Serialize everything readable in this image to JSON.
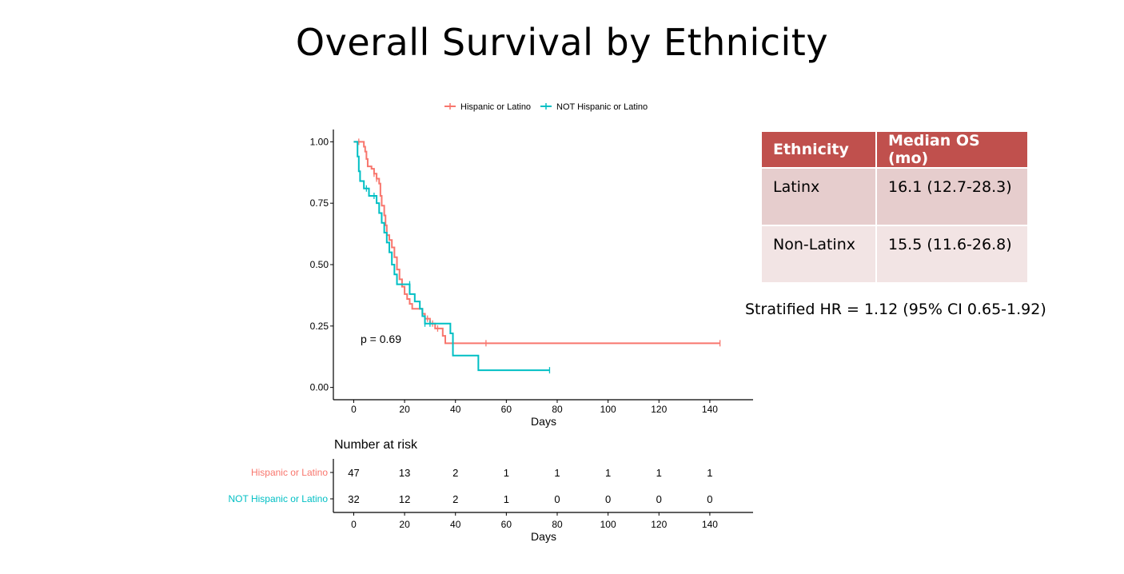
{
  "slide": {
    "title": "Overall Survival by Ethnicity"
  },
  "chart_data": {
    "type": "line",
    "subtype": "kaplan-meier",
    "legend": {
      "position": "top",
      "entries": [
        "Hispanic or Latino",
        "NOT Hispanic or Latino"
      ]
    },
    "xlabel": "Days",
    "ylabel": "",
    "xlim": [
      -8,
      157
    ],
    "ylim": [
      -0.05,
      1.05
    ],
    "xticks": [
      "0",
      "20",
      "40",
      "60",
      "80",
      "100",
      "120",
      "140"
    ],
    "yticks": [
      "0.00",
      "0.25",
      "0.50",
      "0.75",
      "1.00"
    ],
    "annotation": "p = 0.69",
    "series": [
      {
        "name": "Hispanic or Latino",
        "color": "#f8766d",
        "steps": [
          [
            0,
            1.0
          ],
          [
            4,
            0.98
          ],
          [
            4.5,
            0.96
          ],
          [
            5,
            0.93
          ],
          [
            5.5,
            0.9
          ],
          [
            7,
            0.89
          ],
          [
            8,
            0.87
          ],
          [
            9,
            0.85
          ],
          [
            10,
            0.83
          ],
          [
            10.5,
            0.78
          ],
          [
            11,
            0.74
          ],
          [
            12,
            0.7
          ],
          [
            12.5,
            0.66
          ],
          [
            13,
            0.62
          ],
          [
            14,
            0.6
          ],
          [
            15,
            0.57
          ],
          [
            16,
            0.53
          ],
          [
            17,
            0.48
          ],
          [
            18,
            0.44
          ],
          [
            19,
            0.41
          ],
          [
            20,
            0.38
          ],
          [
            21,
            0.36
          ],
          [
            22,
            0.34
          ],
          [
            23,
            0.32
          ],
          [
            27,
            0.3
          ],
          [
            28,
            0.28
          ],
          [
            30,
            0.26
          ],
          [
            32,
            0.24
          ],
          [
            35,
            0.21
          ],
          [
            36,
            0.18
          ],
          [
            144,
            0.18
          ]
        ],
        "censor": [
          [
            2,
            1.0
          ],
          [
            8,
            0.87
          ],
          [
            9,
            0.85
          ],
          [
            29,
            0.28
          ],
          [
            31,
            0.26
          ],
          [
            33,
            0.24
          ],
          [
            52,
            0.18
          ],
          [
            144,
            0.18
          ]
        ]
      },
      {
        "name": "NOT Hispanic or Latino",
        "color": "#00bfc4",
        "steps": [
          [
            0,
            1.0
          ],
          [
            1,
            1.0
          ],
          [
            1.5,
            0.94
          ],
          [
            2,
            0.88
          ],
          [
            2.5,
            0.84
          ],
          [
            4,
            0.81
          ],
          [
            6,
            0.78
          ],
          [
            9,
            0.75
          ],
          [
            10,
            0.71
          ],
          [
            11,
            0.67
          ],
          [
            12,
            0.63
          ],
          [
            13,
            0.59
          ],
          [
            14,
            0.55
          ],
          [
            15,
            0.5
          ],
          [
            16,
            0.46
          ],
          [
            17,
            0.42
          ],
          [
            22,
            0.38
          ],
          [
            24,
            0.35
          ],
          [
            26,
            0.32
          ],
          [
            27,
            0.29
          ],
          [
            28,
            0.26
          ],
          [
            38,
            0.22
          ],
          [
            39,
            0.13
          ],
          [
            49,
            0.07
          ],
          [
            77,
            0.07
          ]
        ],
        "censor": [
          [
            5,
            0.81
          ],
          [
            8,
            0.78
          ],
          [
            22,
            0.42
          ],
          [
            28,
            0.26
          ],
          [
            30,
            0.26
          ],
          [
            77,
            0.07
          ]
        ]
      }
    ],
    "risk_table": {
      "title": "Number at risk",
      "xlabel": "Days",
      "times": [
        0,
        20,
        40,
        60,
        80,
        100,
        120,
        140
      ],
      "rows": [
        {
          "name": "Hispanic or Latino",
          "values": [
            "47",
            "13",
            "2",
            "1",
            "1",
            "1",
            "1",
            "1"
          ]
        },
        {
          "name": "NOT Hispanic or Latino",
          "values": [
            "32",
            "12",
            "2",
            "1",
            "0",
            "0",
            "0",
            "0"
          ]
        }
      ]
    }
  },
  "median_table": {
    "headers": [
      "Ethnicity",
      "Median OS (mo)"
    ],
    "rows": [
      [
        "Latinx",
        "16.1 (12.7-28.3)"
      ],
      [
        "Non-Latinx",
        "15.5 (11.6-26.8)"
      ]
    ],
    "header_color": "#c0504d"
  },
  "hazard_ratio_note": "Stratified HR = 1.12 (95% CI 0.65-1.92)"
}
